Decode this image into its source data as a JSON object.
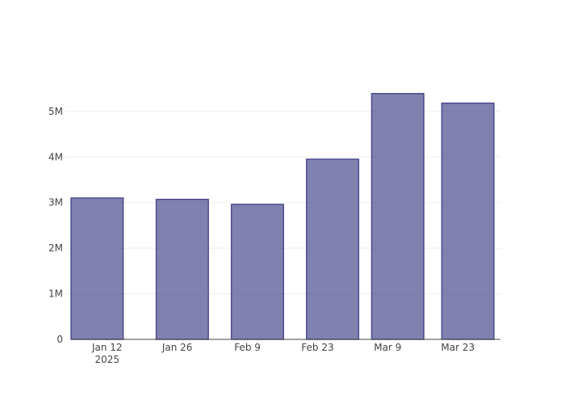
{
  "chart_data": {
    "type": "bar",
    "x": [
      "2025-01-10",
      "2025-01-27",
      "2025-02-11",
      "2025-02-26",
      "2025-03-11",
      "2025-03-25"
    ],
    "values": [
      3100000,
      3070000,
      2960000,
      3950000,
      5390000,
      5180000
    ],
    "color": "#4b4b8f",
    "opacity": 0.7,
    "line_color": "#4b4b8f",
    "xlim": [
      "2025-01-03T12:00:00Z",
      "2025-03-31T12:00:00Z"
    ],
    "xticks": [
      {
        "value": "2025-01-12",
        "label": "Jan 12\n2025"
      },
      {
        "value": "2025-01-26",
        "label": "Jan 26"
      },
      {
        "value": "2025-02-09",
        "label": "Feb 9"
      },
      {
        "value": "2025-02-23",
        "label": "Feb 23"
      },
      {
        "value": "2025-03-09",
        "label": "Mar 9"
      },
      {
        "value": "2025-03-23",
        "label": "Mar 23"
      }
    ],
    "ylim": [
      0,
      5670000
    ],
    "yticks": [
      0,
      {
        "value": 1000000,
        "label": "1M"
      },
      {
        "value": 2000000,
        "label": "2M"
      },
      {
        "value": 3000000,
        "label": "3M"
      },
      {
        "value": 4000000,
        "label": "4M"
      },
      {
        "value": 5000000,
        "label": "5M"
      }
    ],
    "grid": true
  }
}
